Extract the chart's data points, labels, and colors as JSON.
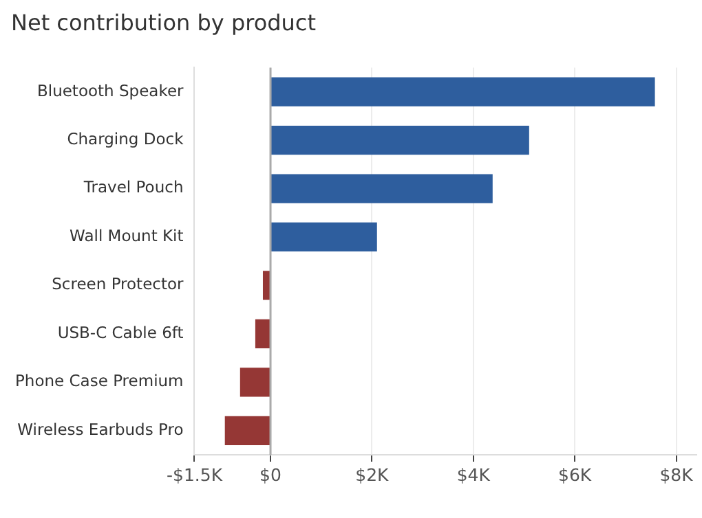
{
  "chart_data": {
    "type": "bar",
    "orientation": "horizontal",
    "title": "Net contribution by product",
    "categories": [
      "Bluetooth Speaker",
      "Charging Dock",
      "Travel Pouch",
      "Wall Mount Kit",
      "Screen Protector",
      "USB-C Cable 6ft",
      "Phone Case Premium",
      "Wireless Earbuds Pro"
    ],
    "values": [
      7580,
      5100,
      4380,
      2100,
      -150,
      -300,
      -600,
      -900
    ],
    "colors": [
      "#2e5e9e",
      "#2e5e9e",
      "#2e5e9e",
      "#2e5e9e",
      "#953735",
      "#953735",
      "#953735",
      "#953735"
    ],
    "xlim": [
      -1500,
      8400
    ],
    "xticks": [
      {
        "value": -1500,
        "label": "-$1.5K"
      },
      {
        "value": 0,
        "label": "$0"
      },
      {
        "value": 2000,
        "label": "$2K"
      },
      {
        "value": 4000,
        "label": "$4K"
      },
      {
        "value": 6000,
        "label": "$6K"
      },
      {
        "value": 8000,
        "label": "$8K"
      }
    ],
    "grid": "x",
    "ref_lines": [
      {
        "axis": "x",
        "value": 0,
        "color": "#aaaaaa"
      }
    ]
  }
}
